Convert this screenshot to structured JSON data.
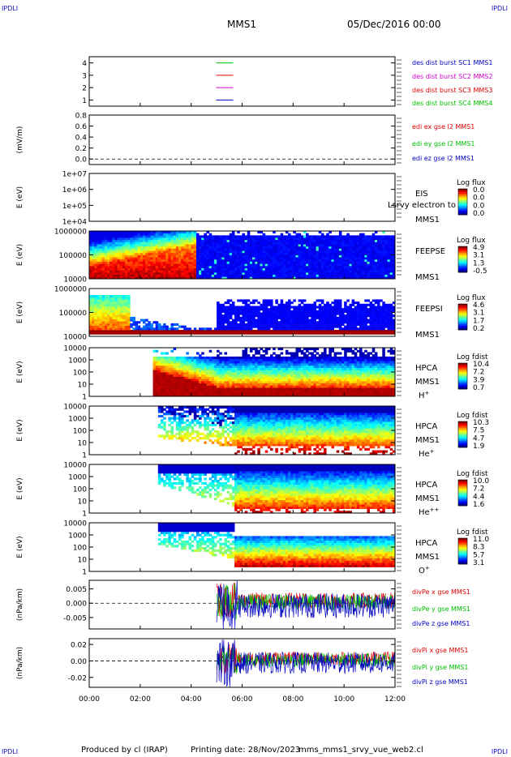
{
  "header": {
    "corner_label": "IPDLI",
    "spacecraft": "MMS1",
    "date": "05/Dec/2016 00:00"
  },
  "footer": {
    "produced_by": "Produced by cl (IRAP)",
    "printing_date": "Printing date: 28/Nov/2023",
    "filename": "mms_mms1_srvy_vue_web2.cl"
  },
  "colors": {
    "red": "#e00000",
    "green": "#00c000",
    "blue": "#0000c0",
    "magenta": "#d000d0",
    "ink": "#000000"
  },
  "chart_data": [
    {
      "type": "line",
      "id": "burst",
      "ylim": [
        0.5,
        4.5
      ],
      "yticks": [
        "1",
        "2",
        "3",
        "4"
      ],
      "ylabel": "",
      "legend": [
        {
          "text": "des dist burst SC1 MMS1",
          "color": "#0000c0"
        },
        {
          "text": "des dist burst SC2 MMS2",
          "color": "#d000d0"
        },
        {
          "text": "des dist burst SC3 MMS3",
          "color": "#e00000"
        },
        {
          "text": "des dist burst SC4 MMS4",
          "color": "#00c000"
        }
      ],
      "series": [
        {
          "y": 4,
          "color": "#00c000"
        },
        {
          "y": 3,
          "color": "#e00000"
        },
        {
          "y": 2,
          "color": "#d000d0"
        },
        {
          "y": 1,
          "color": "#0000c0"
        }
      ]
    },
    {
      "type": "line",
      "id": "edi",
      "ylim": [
        -0.1,
        0.8
      ],
      "yticks": [
        "0.0",
        "0.2",
        "0.4",
        "0.6",
        "0.8"
      ],
      "ylabel": "(mV/m)",
      "legend": [
        {
          "text": "edi ex gse l2 MMS1",
          "color": "#e00000"
        },
        {
          "text": "edi ey gse l2 MMS1",
          "color": "#00c000"
        },
        {
          "text": "edi ez gse l2 MMS1",
          "color": "#0000c0"
        }
      ]
    },
    {
      "type": "heatmap",
      "id": "eis",
      "ylabel": "E (eV)",
      "yticks": [
        "1e+04",
        "1e+05",
        "1e+06",
        "1e+07"
      ],
      "instrument": [
        "EIS",
        "MMS1"
      ],
      "overlay_text": "Lsrvy electron to",
      "cbar_title": "Log flux",
      "cbar_ticks": [
        "0.0",
        "0.0",
        "0.0",
        "0.0"
      ],
      "fill": "none"
    },
    {
      "type": "heatmap",
      "id": "feepse",
      "ylabel": "E (eV)",
      "yticks": [
        "10000",
        "100000",
        "1000000"
      ],
      "instrument": [
        "FEEPSE",
        "MMS1"
      ],
      "cbar_title": "Log flux",
      "cbar_ticks": [
        "4.9",
        "3.1",
        "1.3",
        "-0.5"
      ],
      "fill": "feepse"
    },
    {
      "type": "heatmap",
      "id": "feepsi",
      "ylabel": "E (eV)",
      "yticks": [
        "10000",
        "100000",
        "1000000"
      ],
      "instrument": [
        "FEEPSI",
        "MMS1"
      ],
      "cbar_title": "Log flux",
      "cbar_ticks": [
        "4.6",
        "3.1",
        "1.7",
        "0.2"
      ],
      "fill": "feepsi"
    },
    {
      "type": "heatmap",
      "id": "hpca_h",
      "ylabel": "E (eV)",
      "yticks": [
        "1",
        "10",
        "100",
        "1000",
        "10000"
      ],
      "instrument": [
        "HPCA",
        "MMS1"
      ],
      "species": "H",
      "charge": "+",
      "cbar_title": "Log fdist",
      "cbar_ticks": [
        "10.4",
        "7.2",
        "3.9",
        "0.7"
      ],
      "fill": "hpca_h"
    },
    {
      "type": "heatmap",
      "id": "hpca_he1",
      "ylabel": "E (eV)",
      "yticks": [
        "1",
        "10",
        "100",
        "1000",
        "10000"
      ],
      "instrument": [
        "HPCA",
        "MMS1"
      ],
      "species": "He",
      "charge": "+",
      "cbar_title": "Log fdist",
      "cbar_ticks": [
        "10.3",
        "7.5",
        "4.7",
        "1.9"
      ],
      "fill": "hpca_he1"
    },
    {
      "type": "heatmap",
      "id": "hpca_he2",
      "ylabel": "E (eV)",
      "yticks": [
        "1",
        "10",
        "100",
        "1000",
        "10000"
      ],
      "instrument": [
        "HPCA",
        "MMS1"
      ],
      "species": "He",
      "charge": "++",
      "cbar_title": "Log fdist",
      "cbar_ticks": [
        "10.0",
        "7.2",
        "4.4",
        "1.6"
      ],
      "fill": "hpca_he2"
    },
    {
      "type": "heatmap",
      "id": "hpca_o",
      "ylabel": "E (eV)",
      "yticks": [
        "1",
        "10",
        "100",
        "1000",
        "10000"
      ],
      "instrument": [
        "HPCA",
        "MMS1"
      ],
      "species": "O",
      "charge": "+",
      "cbar_title": "Log fdist",
      "cbar_ticks": [
        "11.0",
        "8.3",
        "5.7",
        "3.1"
      ],
      "fill": "hpca_o"
    },
    {
      "type": "line",
      "id": "divpe",
      "ylim": [
        -0.009,
        0.008
      ],
      "yticks": [
        "-0.005",
        "0.000",
        "0.005"
      ],
      "ylabel": "(nPa/km)",
      "amp": 0.004,
      "legend": [
        {
          "text": "divPe x gse MMS1",
          "color": "#e00000"
        },
        {
          "text": "divPe y gse MMS1",
          "color": "#00c000"
        },
        {
          "text": "divPe z gse MMS1",
          "color": "#0000c0"
        }
      ]
    },
    {
      "type": "line",
      "id": "divpi",
      "ylim": [
        -0.032,
        0.027
      ],
      "yticks": [
        "-0.02",
        "0.00",
        "0.02"
      ],
      "ylabel": "(nPa/km)",
      "amp": 0.012,
      "legend": [
        {
          "text": "divPi x gse MMS1",
          "color": "#e00000"
        },
        {
          "text": "divPi y gse MMS1",
          "color": "#00c000"
        },
        {
          "text": "divPi z gse MMS1",
          "color": "#0000c0"
        }
      ]
    }
  ],
  "xaxis": {
    "ticks": [
      "00:00",
      "02:00",
      "04:00",
      "06:00",
      "08:00",
      "10:00",
      "12:00"
    ],
    "range_hours": [
      0,
      12
    ]
  }
}
